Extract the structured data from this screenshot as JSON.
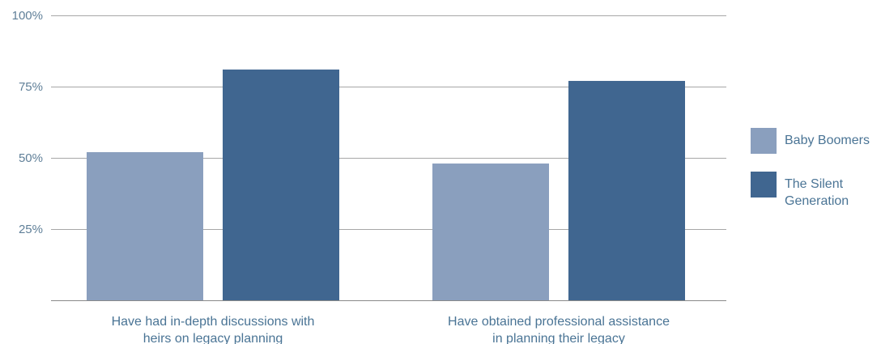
{
  "chart_data": {
    "type": "bar",
    "categories": [
      [
        "Have had in-depth discussions with",
        "heirs on legacy planning"
      ],
      [
        "Have obtained professional assistance",
        "in planning their legacy"
      ]
    ],
    "series": [
      {
        "name": "Baby Boomers",
        "color": "#8a9fbe",
        "values": [
          52,
          48
        ]
      },
      {
        "name": "The Silent Generation",
        "color": "#406690",
        "values": [
          81,
          77
        ]
      }
    ],
    "ylim": [
      0,
      100
    ],
    "yticks": [
      {
        "value": 25,
        "label": "25%"
      },
      {
        "value": 50,
        "label": "50%"
      },
      {
        "value": 75,
        "label": "75%"
      },
      {
        "value": 100,
        "label": "100%"
      }
    ],
    "grid": true,
    "legend_position": "right",
    "legend": [
      {
        "label_lines": [
          "Baby Boomers"
        ]
      },
      {
        "label_lines": [
          "The Silent",
          "Generation"
        ]
      }
    ]
  }
}
